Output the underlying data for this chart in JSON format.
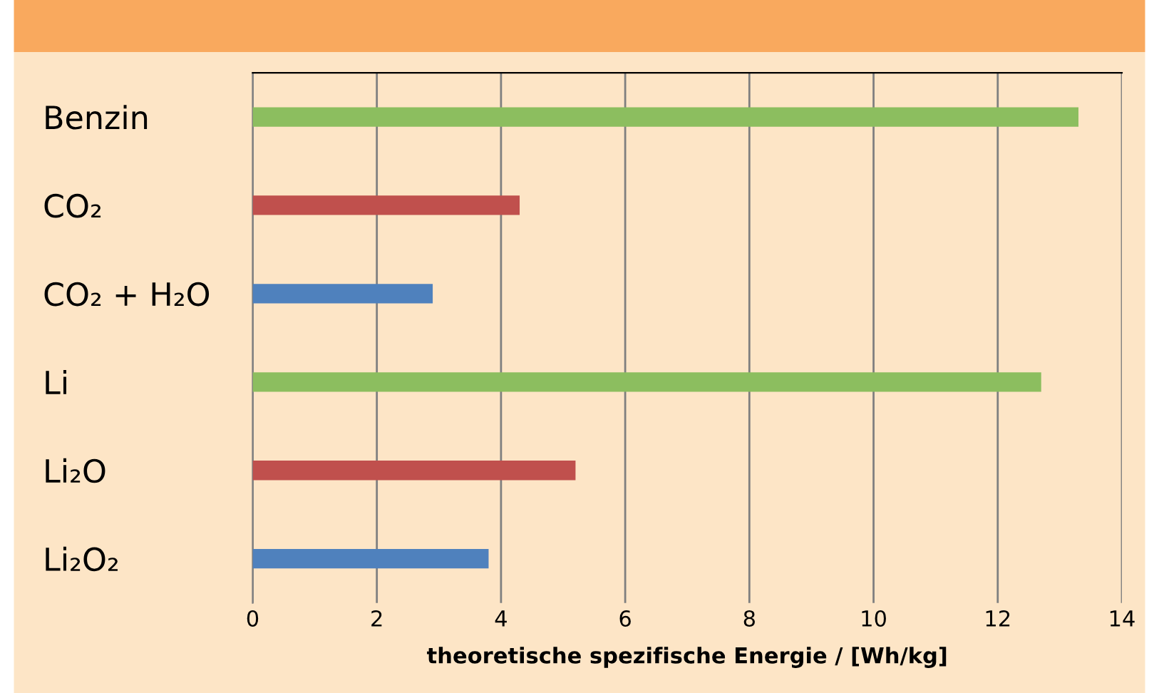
{
  "chart_data": {
    "type": "bar",
    "orientation": "horizontal",
    "xlabel": "theoretische spezifische Energie / [Wh/kg]",
    "categories": [
      "Benzin",
      "CO₂",
      "CO₂ + H₂O",
      "Li",
      "Li₂O",
      "Li₂O₂"
    ],
    "values": [
      13.3,
      4.3,
      2.9,
      12.7,
      5.2,
      3.8
    ],
    "colors": [
      "#8cbe5f",
      "#c0504d",
      "#4f81bd",
      "#8cbe5f",
      "#c0504d",
      "#4f81bd"
    ],
    "xlim": [
      0,
      14
    ],
    "xticks": [
      0,
      2,
      4,
      6,
      8,
      10,
      12,
      14
    ],
    "grid": "x",
    "legend": false
  }
}
